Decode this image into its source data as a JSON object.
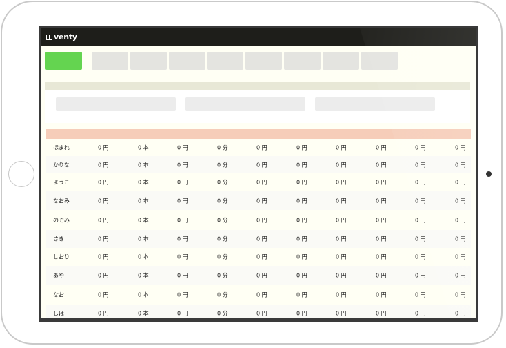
{
  "app": {
    "logo_text": "venty"
  },
  "tabs": [
    {
      "label": "",
      "active": true
    },
    {
      "label": "",
      "active": false
    },
    {
      "label": "",
      "active": false
    },
    {
      "label": "",
      "active": false
    },
    {
      "label": "",
      "active": false
    },
    {
      "label": "",
      "active": false
    },
    {
      "label": "",
      "active": false
    },
    {
      "label": "",
      "active": false
    },
    {
      "label": "",
      "active": false
    }
  ],
  "colors": {
    "accent": "#64d450",
    "header": "#1e1e1a",
    "table_header": "#f6cdb9"
  },
  "table": {
    "rows": [
      {
        "name": "ほまれ",
        "values": [
          "0 円",
          "0 本",
          "0 円",
          "0 分",
          "0 円",
          "0 円",
          "0 円",
          "0 円",
          "0 円",
          "0 円"
        ]
      },
      {
        "name": "かりな",
        "values": [
          "0 円",
          "0 本",
          "0 円",
          "0 分",
          "0 円",
          "0 円",
          "0 円",
          "0 円",
          "0 円",
          "0 円"
        ]
      },
      {
        "name": "ようこ",
        "values": [
          "0 円",
          "0 本",
          "0 円",
          "0 分",
          "0 円",
          "0 円",
          "0 円",
          "0 円",
          "0 円",
          "0 円"
        ]
      },
      {
        "name": "なおみ",
        "values": [
          "0 円",
          "0 本",
          "0 円",
          "0 分",
          "0 円",
          "0 円",
          "0 円",
          "0 円",
          "0 円",
          "0 円"
        ]
      },
      {
        "name": "のぞみ",
        "values": [
          "0 円",
          "0 本",
          "0 円",
          "0 分",
          "0 円",
          "0 円",
          "0 円",
          "0 円",
          "0 円",
          "0 円"
        ]
      },
      {
        "name": "さき",
        "values": [
          "0 円",
          "0 本",
          "0 円",
          "0 分",
          "0 円",
          "0 円",
          "0 円",
          "0 円",
          "0 円",
          "0 円"
        ]
      },
      {
        "name": "しおり",
        "values": [
          "0 円",
          "0 本",
          "0 円",
          "0 分",
          "0 円",
          "0 円",
          "0 円",
          "0 円",
          "0 円",
          "0 円"
        ]
      },
      {
        "name": "あや",
        "values": [
          "0 円",
          "0 本",
          "0 円",
          "0 分",
          "0 円",
          "0 円",
          "0 円",
          "0 円",
          "0 円",
          "0 円"
        ]
      },
      {
        "name": "なお",
        "values": [
          "0 円",
          "0 本",
          "0 円",
          "0 分",
          "0 円",
          "0 円",
          "0 円",
          "0 円",
          "0 円",
          "0 円"
        ]
      },
      {
        "name": "しほ",
        "values": [
          "0 円",
          "0 本",
          "0 円",
          "0 分",
          "0 円",
          "0 円",
          "0 円",
          "0 円",
          "0 円",
          "0 円"
        ]
      }
    ]
  }
}
